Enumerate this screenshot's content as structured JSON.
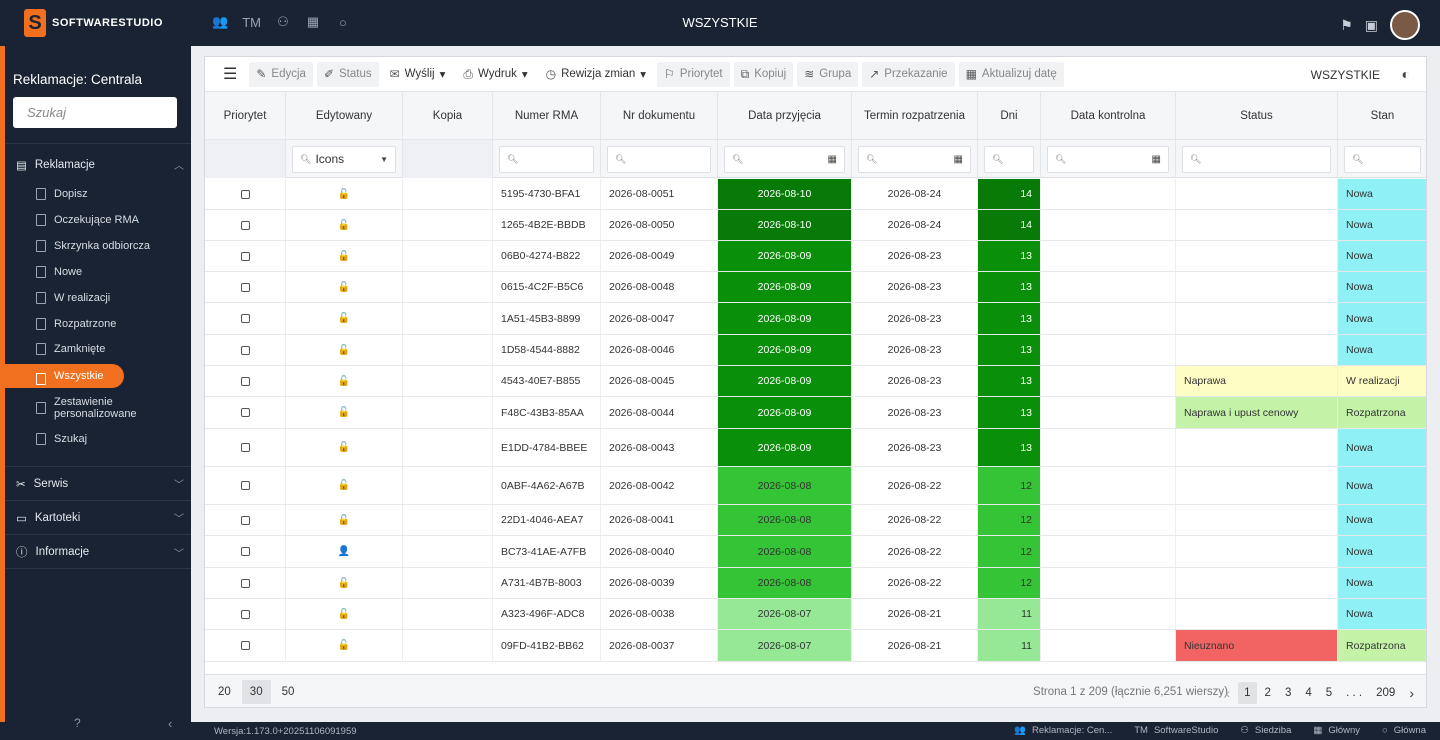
{
  "app": {
    "logo_letter": "S",
    "logo_text": "SOFTWARESTUDIO",
    "title": "WSZYSTKIE",
    "top_icons": [
      "users-icon",
      "tm-label",
      "hierarchy-icon",
      "building-icon",
      "circle-icon"
    ],
    "tm": "TM"
  },
  "sidebar": {
    "title": "Reklamacje: Centrala",
    "search_placeholder": "Szukaj",
    "section_reklamacje": "Reklamacje",
    "items": [
      "Dopisz",
      "Oczekujące RMA",
      "Skrzynka odbiorcza",
      "Nowe",
      "W realizacji",
      "Rozpatrzone",
      "Zamknięte",
      "Wszystkie",
      "Zestawienie personalizowane",
      "Szukaj"
    ],
    "active_index": 7,
    "section_serwis": "Serwis",
    "section_kartoteki": "Kartoteki",
    "section_informacje": "Informacje"
  },
  "toolbar": {
    "edycja": "Edycja",
    "status": "Status",
    "wyslij": "Wyślij",
    "wydruk": "Wydruk",
    "rewizja": "Rewizja zmian",
    "priorytet": "Priorytet",
    "kopiuj": "Kopiuj",
    "grupa": "Grupa",
    "przekazanie": "Przekazanie",
    "aktualizuj": "Aktualizuj datę",
    "view_label": "WSZYSTKIE"
  },
  "columns": [
    "Priorytet",
    "Edytowany",
    "Kopia",
    "Numer RMA",
    "Nr dokumentu",
    "Data przyjęcia",
    "Termin rozpatrzenia",
    "Dni",
    "Data kontrolna",
    "Status",
    "Stan"
  ],
  "filter_icons_label": "Icons",
  "rows": [
    {
      "rma": "5195-4730-BFA1",
      "doc": "2026-08-0051",
      "date": "2026-08-10",
      "term": "2026-08-24",
      "days": "14",
      "status": "",
      "stan": "Nowa",
      "lock": "🔓",
      "dcolor": "#087a08",
      "scolor": "",
      "stancolor": "#8ff0f6",
      "dtext": "#fff"
    },
    {
      "rma": "1265-4B2E-BBDB",
      "doc": "2026-08-0050",
      "date": "2026-08-10",
      "term": "2026-08-24",
      "days": "14",
      "status": "",
      "stan": "Nowa",
      "lock": "🔓",
      "dcolor": "#087a08",
      "scolor": "",
      "stancolor": "#8ff0f6",
      "dtext": "#fff"
    },
    {
      "rma": "06B0-4274-B822",
      "doc": "2026-08-0049",
      "date": "2026-08-09",
      "term": "2026-08-23",
      "days": "13",
      "status": "",
      "stan": "Nowa",
      "lock": "🔓",
      "dcolor": "#0a8f0a",
      "scolor": "",
      "stancolor": "#8ff0f6",
      "dtext": "#fff"
    },
    {
      "rma": "0615-4C2F-B5C6",
      "doc": "2026-08-0048",
      "date": "2026-08-09",
      "term": "2026-08-23",
      "days": "13",
      "status": "",
      "stan": "Nowa",
      "lock": "🔓",
      "dcolor": "#0a8f0a",
      "scolor": "",
      "stancolor": "#8ff0f6",
      "dtext": "#fff"
    },
    {
      "rma": "1A51-45B3-8899",
      "doc": "2026-08-0047",
      "date": "2026-08-09",
      "term": "2026-08-23",
      "days": "13",
      "status": "",
      "stan": "Nowa",
      "lock": "🔓",
      "dcolor": "#0a8f0a",
      "scolor": "",
      "stancolor": "#8ff0f6",
      "dtext": "#fff"
    },
    {
      "rma": "1D58-4544-8882",
      "doc": "2026-08-0046",
      "date": "2026-08-09",
      "term": "2026-08-23",
      "days": "13",
      "status": "",
      "stan": "Nowa",
      "lock": "🔓",
      "dcolor": "#0a8f0a",
      "scolor": "",
      "stancolor": "#8ff0f6",
      "dtext": "#fff"
    },
    {
      "rma": "4543-40E7-B855",
      "doc": "2026-08-0045",
      "date": "2026-08-09",
      "term": "2026-08-23",
      "days": "13",
      "status": "Naprawa",
      "stan": "W realizacji",
      "lock": "🔓",
      "dcolor": "#0a8f0a",
      "scolor": "#fdfdc4",
      "stancolor": "#fdfdc4",
      "dtext": "#fff"
    },
    {
      "rma": "F48C-43B3-85AA",
      "doc": "2026-08-0044",
      "date": "2026-08-09",
      "term": "2026-08-23",
      "days": "13",
      "status": "Naprawa i upust cenowy",
      "stan": "Rozpatrzona",
      "lock": "🔓",
      "dcolor": "#0a8f0a",
      "scolor": "#c4f3a8",
      "stancolor": "#c4f3a8",
      "dtext": "#fff"
    },
    {
      "rma": "E1DD-4784-BBEE",
      "doc": "2026-08-0043",
      "date": "2026-08-09",
      "term": "2026-08-23",
      "days": "13",
      "status": "",
      "stan": "Nowa",
      "lock": "🔓",
      "dcolor": "#0a8f0a",
      "scolor": "",
      "stancolor": "#8ff0f6",
      "dtext": "#fff"
    },
    {
      "rma": "0ABF-4A62-A67B",
      "doc": "2026-08-0042",
      "date": "2026-08-08",
      "term": "2026-08-22",
      "days": "12",
      "status": "",
      "stan": "Nowa",
      "lock": "🔓",
      "dcolor": "#35c435",
      "scolor": "",
      "stancolor": "#8ff0f6",
      "dtext": "#333"
    },
    {
      "rma": "22D1-4046-AEA7",
      "doc": "2026-08-0041",
      "date": "2026-08-08",
      "term": "2026-08-22",
      "days": "12",
      "status": "",
      "stan": "Nowa",
      "lock": "🔓",
      "dcolor": "#35c435",
      "scolor": "",
      "stancolor": "#8ff0f6",
      "dtext": "#333"
    },
    {
      "rma": "BC73-41AE-A7FB",
      "doc": "2026-08-0040",
      "date": "2026-08-08",
      "term": "2026-08-22",
      "days": "12",
      "status": "",
      "stan": "Nowa",
      "lock": "👤",
      "dcolor": "#35c435",
      "scolor": "",
      "stancolor": "#8ff0f6",
      "dtext": "#333"
    },
    {
      "rma": "A731-4B7B-8003",
      "doc": "2026-08-0039",
      "date": "2026-08-08",
      "term": "2026-08-22",
      "days": "12",
      "status": "",
      "stan": "Nowa",
      "lock": "🔓",
      "dcolor": "#35c435",
      "scolor": "",
      "stancolor": "#8ff0f6",
      "dtext": "#333"
    },
    {
      "rma": "A323-496F-ADC8",
      "doc": "2026-08-0038",
      "date": "2026-08-07",
      "term": "2026-08-21",
      "days": "11",
      "status": "",
      "stan": "Nowa",
      "lock": "🔓",
      "dcolor": "#96e896",
      "scolor": "",
      "stancolor": "#8ff0f6",
      "dtext": "#333"
    },
    {
      "rma": "09FD-41B2-BB62",
      "doc": "2026-08-0037",
      "date": "2026-08-07",
      "term": "2026-08-21",
      "days": "11",
      "status": "Nieuznano",
      "stan": "Rozpatrzona",
      "lock": "🔓",
      "dcolor": "#96e896",
      "scolor": "#f26464",
      "stancolor": "#c4f3a8",
      "dtext": "#333"
    }
  ],
  "pager": {
    "sizes": [
      "20",
      "30",
      "50"
    ],
    "selected_size": "30",
    "info": "Strona 1 z 209 (łącznie 6,251 wierszy)",
    "pages": [
      "1",
      "2",
      "3",
      "4",
      "5"
    ],
    "ellipsis": ". . .",
    "last": "209"
  },
  "statusbar": {
    "version": "Wersja:1.173.0+20251106091959",
    "items": [
      "Reklamacje: Cen...",
      "SoftwareStudio",
      "Siedziba",
      "Główny",
      "Główna"
    ],
    "tm": "TM"
  }
}
